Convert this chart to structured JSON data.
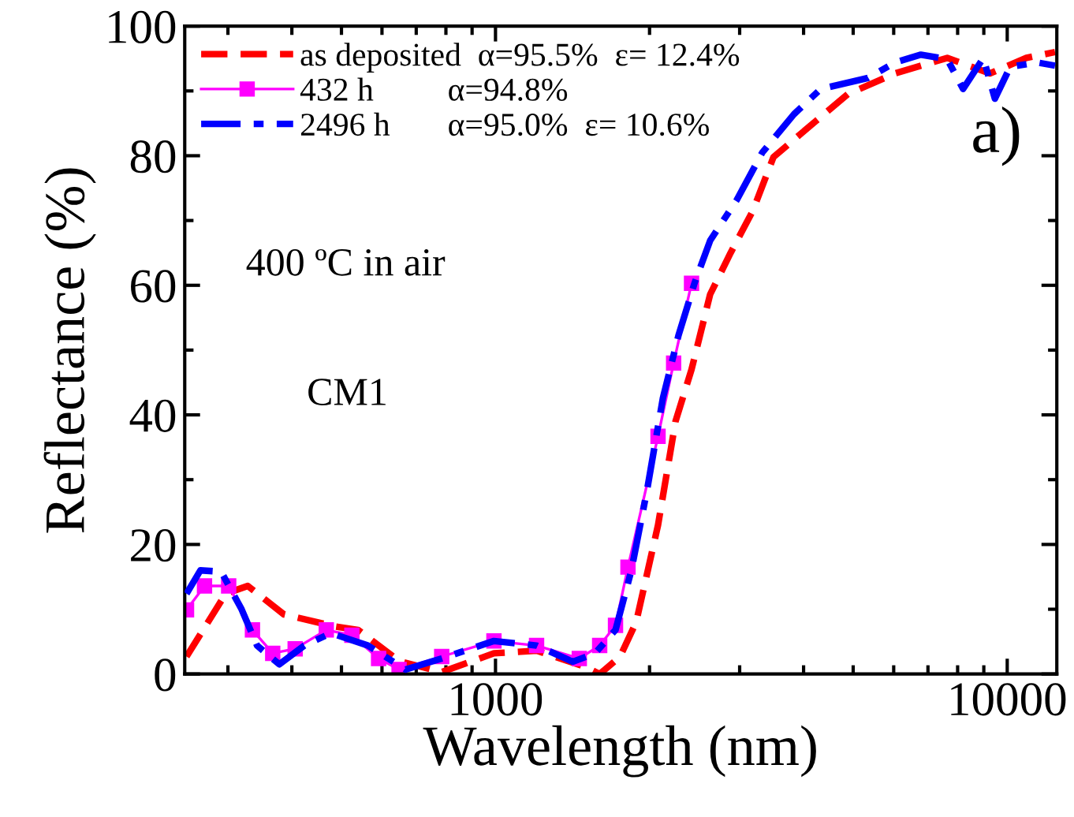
{
  "chart_data": {
    "type": "line",
    "xlabel": "Wavelength (nm)",
    "ylabel": "Reflectance (%)",
    "log": "x",
    "xlim": [
      247,
      12500
    ],
    "xticks": [
      1000,
      10000
    ],
    "ylim": [
      0,
      100
    ],
    "yticks": [
      0,
      20,
      40,
      60,
      80,
      100
    ],
    "grid": false,
    "legend": "top left",
    "annotations": [
      "400 ºC in air",
      "CM1",
      "a)"
    ],
    "series": [
      {
        "name": "as deposited  α=95.5%  ε= 12.4%",
        "color": "#ff0000",
        "line_style": "dashed",
        "marker": "none",
        "x": [
          249,
          297,
          328,
          386,
          488,
          539,
          648,
          785,
          993,
          1203,
          1489,
          1598,
          1752,
          1883,
          2078,
          2248,
          2416,
          2627,
          2880,
          3183,
          3494,
          4234,
          4879,
          6040,
          7634,
          9250,
          10900,
          12400
        ],
        "values": [
          2.7,
          12.4,
          13.6,
          9.2,
          7.3,
          6.8,
          2,
          0.3,
          3.2,
          3.6,
          1.2,
          0,
          2.7,
          8,
          23,
          39,
          47,
          58.6,
          65,
          71.5,
          79.8,
          85.4,
          89.5,
          92.7,
          95.1,
          92.7,
          95.1,
          96
        ]
      },
      {
        "name": "432 h         α=94.8%",
        "color": "#ff00ff",
        "line_style": "solid",
        "marker": "square",
        "x": [
          249,
          270,
          301,
          335,
          367,
          406,
          467,
          524,
          591,
          648,
          785,
          993,
          1203,
          1458,
          1598,
          1716,
          1815,
          2078,
          2229,
          2416
        ],
        "values": [
          9.9,
          13.6,
          13.6,
          6.8,
          3.2,
          3.9,
          6.8,
          6,
          2.4,
          0.7,
          2.7,
          5.1,
          4.4,
          2.4,
          4.4,
          7.5,
          16.5,
          36.7,
          48,
          60.3
        ]
      },
      {
        "name": "2496 h       α=95.0%  ε= 10.6%",
        "color": "#0000ff",
        "line_style": "dashdot",
        "marker": "none",
        "x": [
          249,
          265,
          291,
          319,
          342,
          378,
          423,
          477,
          563,
          667,
          785,
          993,
          1203,
          1416,
          1565,
          1716,
          1843,
          1979,
          2124,
          2279,
          2448,
          2627,
          2963,
          3322,
          3830,
          4320,
          5343,
          6040,
          6781,
          7634,
          8200,
          8980,
          9460,
          10130,
          11430,
          12400
        ],
        "values": [
          12.4,
          16,
          15.8,
          10,
          4.4,
          1.5,
          4.4,
          6.3,
          4.4,
          0.7,
          2.4,
          5.1,
          4.4,
          1.9,
          3.2,
          6.8,
          16,
          28.5,
          42.6,
          52.3,
          60.3,
          66.9,
          73.2,
          80.5,
          86.4,
          90.3,
          92,
          94.4,
          95.6,
          94.9,
          90.3,
          95.1,
          88.8,
          93.7,
          94.4,
          93.9
        ]
      }
    ]
  }
}
